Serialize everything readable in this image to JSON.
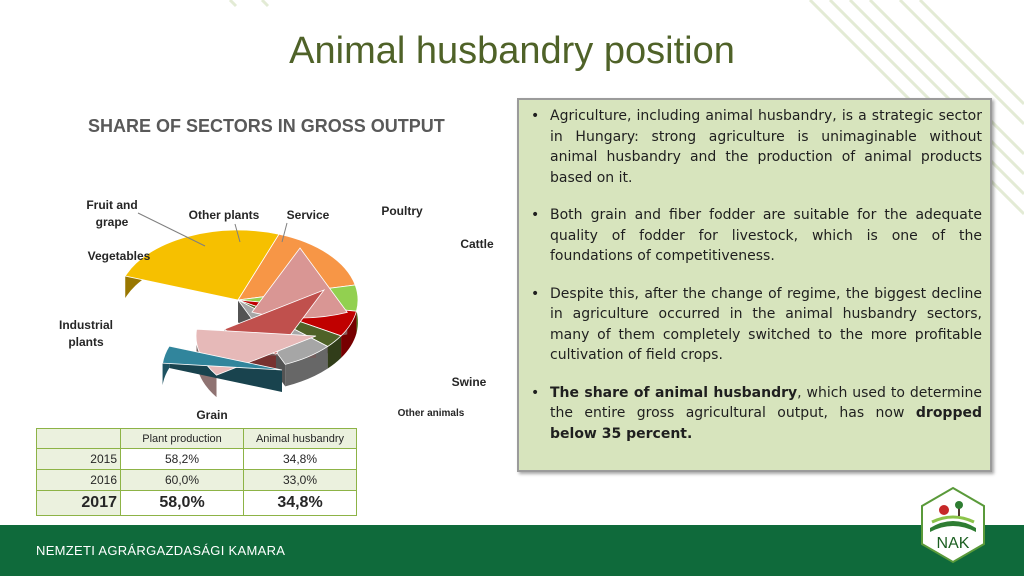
{
  "title": "Animal husbandry position",
  "chart": {
    "heading": "SHARE OF SECTORS IN GROSS OUTPUT"
  },
  "chart_data": {
    "type": "pie",
    "title": "SHARE OF SECTORS IN GROSS OUTPUT",
    "labels": [
      "Grain",
      "Industrial plants",
      "Vegetables",
      "Fruit and grape",
      "Other plants",
      "Service",
      "Poultry",
      "Cattle",
      "Swine",
      "Other animals"
    ],
    "values": [
      25,
      16,
      6,
      6,
      3,
      7,
      13,
      9,
      11,
      4
    ],
    "colors": [
      "#f6c000",
      "#f79646",
      "#92d050",
      "#c00000",
      "#4f6228",
      "#a6a6a6",
      "#d99694",
      "#c0504d",
      "#e6b9b8",
      "#31859c"
    ],
    "exploded": [
      "Poultry",
      "Cattle",
      "Swine",
      "Other animals"
    ]
  },
  "table": {
    "headers": [
      "",
      "Plant production",
      "Animal husbandry"
    ],
    "rows": [
      [
        "2015",
        "58,2%",
        "34,8%"
      ],
      [
        "2016",
        "60,0%",
        "33,0%"
      ],
      [
        "2017",
        "58,0%",
        "34,8%"
      ]
    ]
  },
  "bullets": [
    {
      "parts": [
        {
          "t": "Agriculture, including animal husbandry, is a strategic sector in Hungary: strong agriculture is unimaginable without animal husbandry and the production of animal products based on it.",
          "b": false
        }
      ]
    },
    {
      "parts": [
        {
          "t": "Both grain and fiber fodder are suitable for the adequate quality of fodder for livestock, which is one of the foundations of competitiveness.",
          "b": false
        }
      ]
    },
    {
      "parts": [
        {
          "t": "Despite this, after the change of regime, the biggest decline in agriculture occurred in the animal husbandry sectors, many of them completely switched to the more profitable cultivation of field crops.",
          "b": false
        }
      ]
    },
    {
      "parts": [
        {
          "t": "The share of animal husbandry",
          "b": true
        },
        {
          "t": ", which used to determine the entire gross agricultural output, has now ",
          "b": false
        },
        {
          "t": "dropped below 35 percent.",
          "b": true
        }
      ]
    }
  ],
  "footer": {
    "org": "NEMZETI AGRÁRGAZDASÁGI KAMARA",
    "logo_text": "NAK"
  }
}
